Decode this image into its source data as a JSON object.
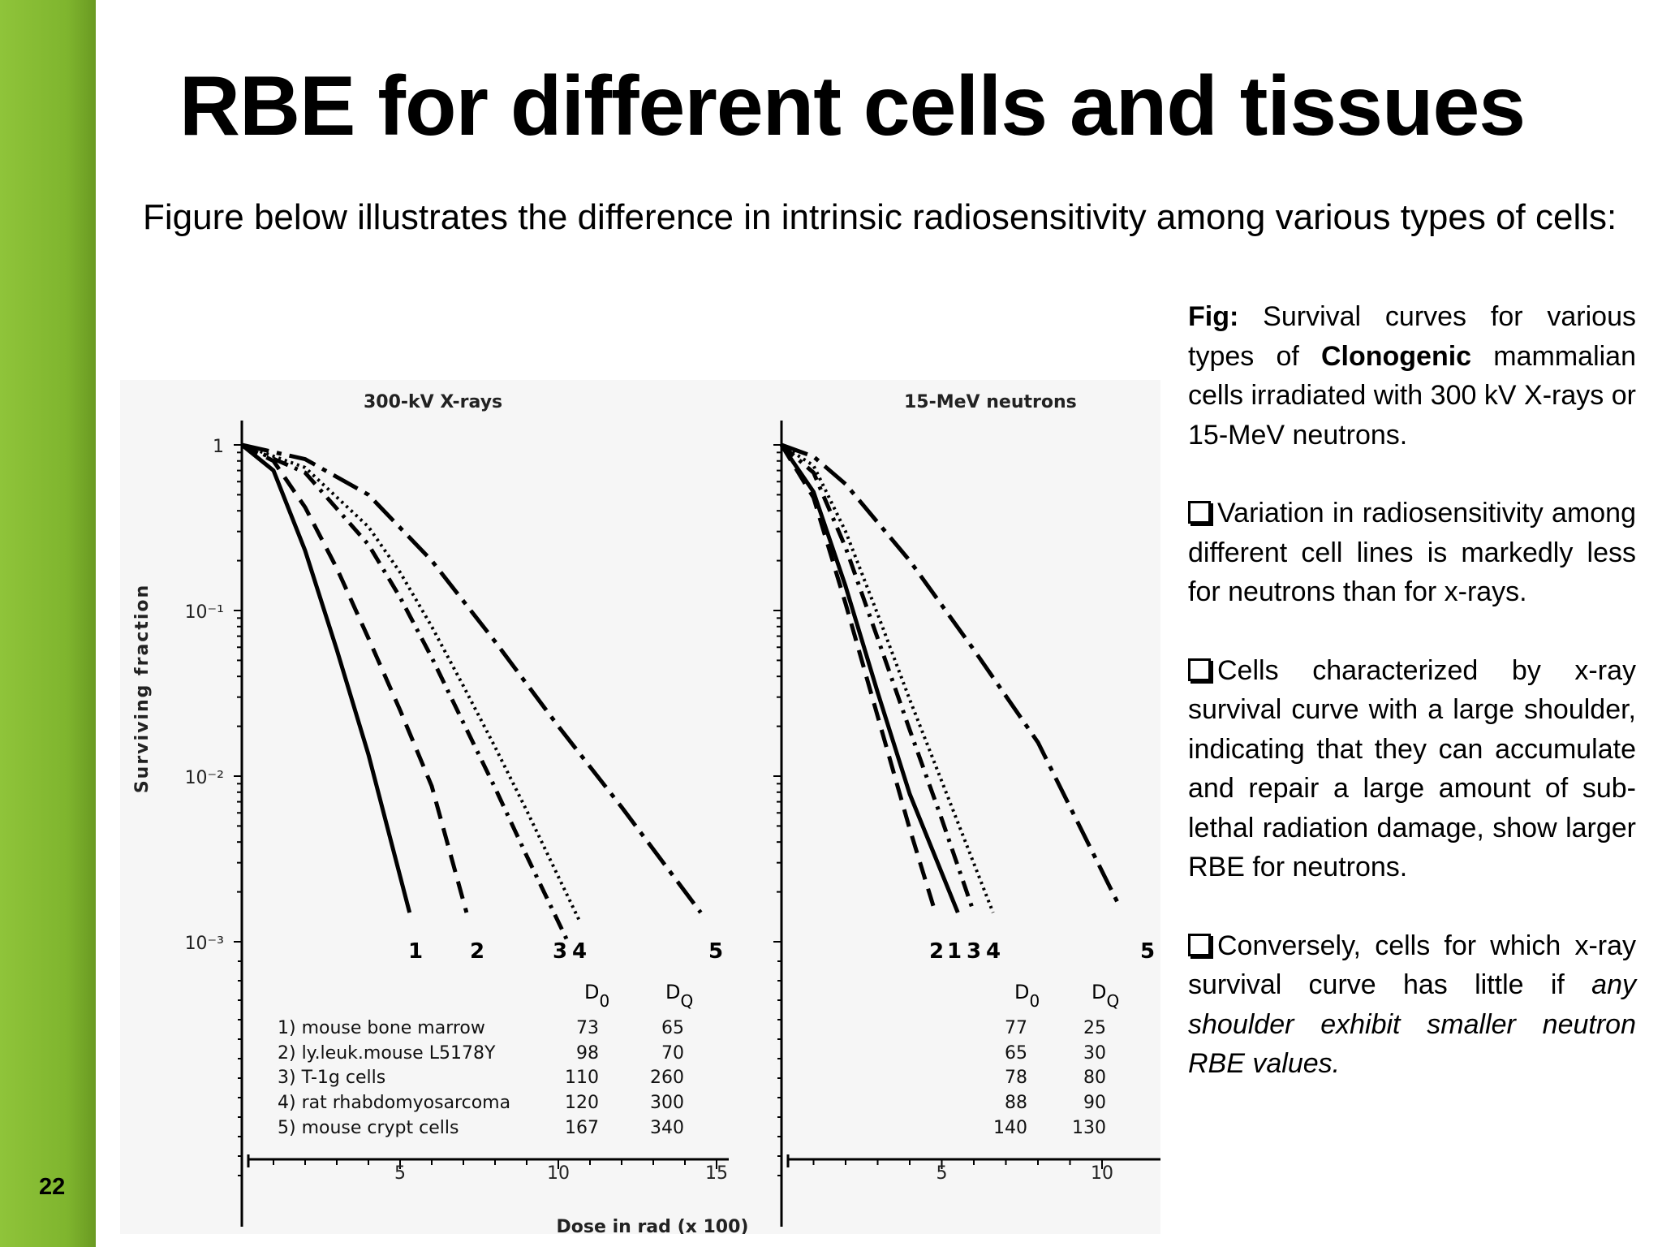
{
  "slide": {
    "number": "22",
    "title": "RBE for different cells and tissues",
    "intro": "Figure below illustrates the difference in intrinsic radiosensitivity among various types of cells:"
  },
  "caption": {
    "fig_label": "Fig:",
    "part1": "Survival curves for various types of",
    "bold_word": "Clonogenic",
    "part2": "mammalian cells irradiated with 300 kV X-rays or 15-MeV neutrons."
  },
  "bullets": [
    {
      "text": "Variation in radiosensitivity among different cell lines is markedly less for neutrons than for x-rays."
    },
    {
      "text": "Cells characterized by x-ray survival curve with a large shoulder, indicating that they can accumulate and repair a large amount of sub-lethal radiation damage, show larger RBE for neutrons."
    },
    {
      "text_plain": "Conversely, cells for which x-ray survival curve has little if",
      "text_italic": "any shoulder exhibit smaller neutron RBE values."
    }
  ],
  "colors": {
    "sidebar": "#7fb52e",
    "text": "#000000",
    "figure_bg": "#f6f6f6"
  },
  "chart_data": [
    {
      "type": "line",
      "title": "300-kV X-rays",
      "xlabel": "Dose in rad (x 100)",
      "ylabel": "Surviving fraction",
      "y_scale": "log",
      "ylim": [
        0.001,
        1
      ],
      "xlim": [
        0,
        15
      ],
      "x_ticks": [
        "5",
        "10",
        "15"
      ],
      "y_ticks": [
        "1",
        "10⁻¹",
        "10⁻²",
        "10⁻³"
      ],
      "legend_headers": [
        "D0",
        "DQ"
      ],
      "series": [
        {
          "name": "mouse bone marrow",
          "label": "1",
          "number_label": "1)",
          "D0": "73",
          "DQ": "65",
          "style": "solid",
          "x": [
            0,
            1,
            2,
            3,
            4,
            5.3
          ],
          "y": [
            1,
            0.7,
            0.23,
            0.058,
            0.0135,
            0.0015
          ]
        },
        {
          "name": "ly.leuk.mouse L5178Y",
          "label": "2",
          "number_label": "2)",
          "D0": "98",
          "DQ": "70",
          "style": "dashed",
          "x": [
            0,
            1,
            2,
            3,
            4,
            5,
            6,
            7.1
          ],
          "y": [
            1,
            0.8,
            0.42,
            0.18,
            0.068,
            0.025,
            0.0087,
            0.0015
          ]
        },
        {
          "name": "T-1g cells",
          "label": "3",
          "number_label": "3)",
          "D0": "110",
          "DQ": "260",
          "style": "dashdot",
          "x": [
            0,
            2,
            4,
            5,
            6,
            7,
            8,
            9,
            10.3
          ],
          "y": [
            1,
            0.68,
            0.25,
            0.12,
            0.052,
            0.021,
            0.0085,
            0.0033,
            0.001
          ]
        },
        {
          "name": "rat rhabdomyosarcoma",
          "label": "4",
          "number_label": "4)",
          "D0": "120",
          "DQ": "300",
          "style": "dotted",
          "x": [
            0,
            2,
            4,
            5,
            6,
            7,
            8,
            9,
            10.7
          ],
          "y": [
            1,
            0.73,
            0.32,
            0.17,
            0.08,
            0.035,
            0.015,
            0.0062,
            0.0013
          ]
        },
        {
          "name": "mouse crypt cells",
          "label": "5",
          "number_label": "5)",
          "D0": "167",
          "DQ": "340",
          "style": "longdashdot",
          "x": [
            0,
            2,
            4,
            6,
            8,
            10,
            12,
            14.5
          ],
          "y": [
            1,
            0.82,
            0.5,
            0.2,
            0.065,
            0.02,
            0.0065,
            0.0015
          ]
        }
      ]
    },
    {
      "type": "line",
      "title": "15-MeV neutrons",
      "xlabel": "Dose in rad (x 100)",
      "y_scale": "log",
      "ylim": [
        0.001,
        1
      ],
      "xlim": [
        0,
        10
      ],
      "x_ticks": [
        "5",
        "10"
      ],
      "legend_headers": [
        "D0",
        "DQ"
      ],
      "series": [
        {
          "name": "mouse bone marrow",
          "label": "1",
          "D0": "77",
          "DQ": "25",
          "style": "solid",
          "x": [
            0,
            1,
            2,
            3,
            4,
            5.5
          ],
          "y": [
            1,
            0.52,
            0.14,
            0.032,
            0.0078,
            0.0015
          ]
        },
        {
          "name": "ly.leuk.mouse L5178Y",
          "label": "2",
          "D0": "65",
          "DQ": "30",
          "style": "dashed",
          "x": [
            0,
            1,
            2,
            3,
            4,
            4.8
          ],
          "y": [
            1,
            0.48,
            0.11,
            0.023,
            0.0048,
            0.0015
          ]
        },
        {
          "name": "T-1g cells",
          "label": "3",
          "D0": "78",
          "DQ": "80",
          "style": "dashdot",
          "x": [
            0,
            1,
            2,
            3,
            4,
            5,
            6
          ],
          "y": [
            1,
            0.68,
            0.24,
            0.068,
            0.019,
            0.0055,
            0.0015
          ]
        },
        {
          "name": "rat rhabdomyosarcoma",
          "label": "4",
          "D0": "88",
          "DQ": "90",
          "style": "dotted",
          "x": [
            0,
            1,
            2,
            3,
            4,
            5,
            6.6
          ],
          "y": [
            1,
            0.75,
            0.3,
            0.095,
            0.029,
            0.0093,
            0.0015
          ]
        },
        {
          "name": "mouse crypt cells",
          "label": "5",
          "D0": "140",
          "DQ": "130",
          "style": "longdashdot",
          "x": [
            0,
            1,
            2,
            4,
            6,
            8,
            10.5
          ],
          "y": [
            1,
            0.85,
            0.58,
            0.2,
            0.058,
            0.016,
            0.0017
          ]
        }
      ]
    }
  ]
}
